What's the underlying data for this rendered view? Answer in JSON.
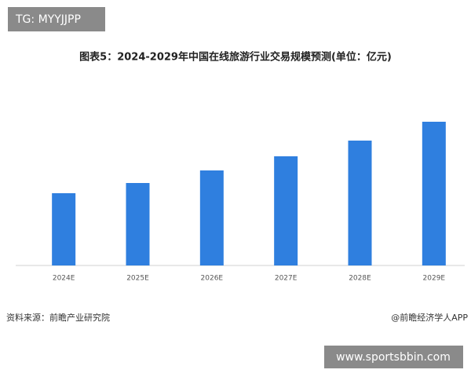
{
  "chart_data": {
    "type": "bar",
    "title": "图表5：2024-2029年中国在线旅游行业交易规模预测(单位：亿元)",
    "categories": [
      "2024E",
      "2025E",
      "2026E",
      "2027E",
      "2028E",
      "2029E"
    ],
    "values": [
      92,
      105,
      121,
      139,
      159,
      183
    ],
    "color": "#2f7fdf",
    "ylim": [
      0,
      200
    ],
    "source": "资料来源：前瞻产业研究院",
    "credit": "@前瞻经济学人APP"
  },
  "overlay": {
    "top_left": "TG: MYYJJPP",
    "bottom_right": "www.sportsbbin.com"
  }
}
